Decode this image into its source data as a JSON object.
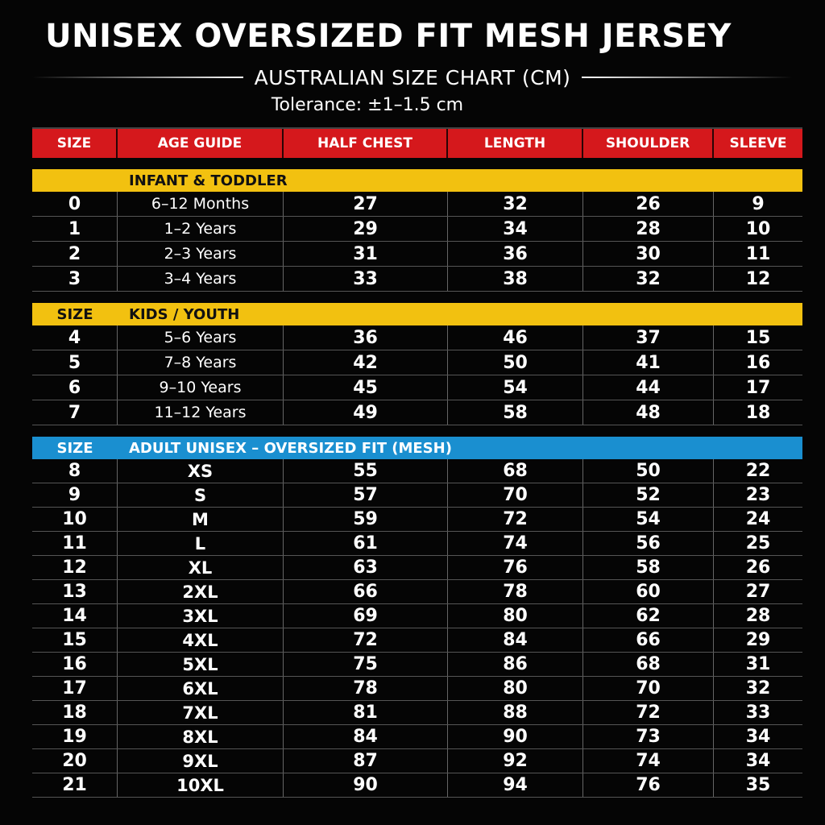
{
  "title": "UNISEX OVERSIZED FIT MESH JERSEY",
  "subtitle": "AUSTRALIAN SIZE CHART (CM)",
  "tolerance": "Tolerance: ±1–1.5 cm",
  "colors": {
    "header_red": "#d5181c",
    "section_yellow": "#f2c110",
    "section_blue": "#1a8fd0",
    "background": "#050505"
  },
  "header": [
    "SIZE",
    "AGE GUIDE",
    "HALF CHEST",
    "LENGTH",
    "SHOULDER",
    "SLEEVE"
  ],
  "sections": [
    {
      "size_label": "",
      "label": "INFANT & TODDLER",
      "color": "yellow",
      "rows": [
        [
          "0",
          "6–12 Months",
          "27",
          "32",
          "26",
          "9"
        ],
        [
          "1",
          "1–2 Years",
          "29",
          "34",
          "28",
          "10"
        ],
        [
          "2",
          "2–3 Years",
          "31",
          "36",
          "30",
          "11"
        ],
        [
          "3",
          "3–4 Years",
          "33",
          "38",
          "32",
          "12"
        ]
      ]
    },
    {
      "size_label": "SIZE",
      "label": "KIDS / YOUTH",
      "color": "yellow",
      "rows": [
        [
          "4",
          "5–6 Years",
          "36",
          "46",
          "37",
          "15"
        ],
        [
          "5",
          "7–8 Years",
          "42",
          "50",
          "41",
          "16"
        ],
        [
          "6",
          "9–10 Years",
          "45",
          "54",
          "44",
          "17"
        ],
        [
          "7",
          "11–12 Years",
          "49",
          "58",
          "48",
          "18"
        ]
      ]
    },
    {
      "size_label": "SIZE",
      "label": "ADULT UNISEX – OVERSIZED FIT (MESH)",
      "color": "blue",
      "rows": [
        [
          "8",
          "XS",
          "55",
          "68",
          "50",
          "22"
        ],
        [
          "9",
          "S",
          "57",
          "70",
          "52",
          "23"
        ],
        [
          "10",
          "M",
          "59",
          "72",
          "54",
          "24"
        ],
        [
          "11",
          "L",
          "61",
          "74",
          "56",
          "25"
        ],
        [
          "12",
          "XL",
          "63",
          "76",
          "58",
          "26"
        ],
        [
          "13",
          "2XL",
          "66",
          "78",
          "60",
          "27"
        ],
        [
          "14",
          "3XL",
          "69",
          "80",
          "62",
          "28"
        ],
        [
          "15",
          "4XL",
          "72",
          "84",
          "66",
          "29"
        ],
        [
          "16",
          "5XL",
          "75",
          "86",
          "68",
          "31"
        ],
        [
          "17",
          "6XL",
          "78",
          "80",
          "70",
          "32"
        ],
        [
          "18",
          "7XL",
          "81",
          "88",
          "72",
          "33"
        ],
        [
          "19",
          "8XL",
          "84",
          "90",
          "73",
          "34"
        ],
        [
          "20",
          "9XL",
          "87",
          "92",
          "74",
          "34"
        ],
        [
          "21",
          "10XL",
          "90",
          "94",
          "76",
          "35"
        ]
      ]
    }
  ]
}
